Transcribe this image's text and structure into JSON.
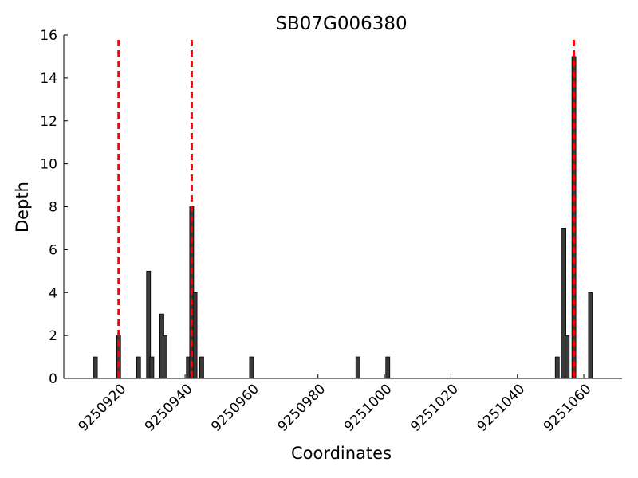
{
  "chart_data": {
    "type": "bar",
    "title": "SB07G006380",
    "x_label": "Coordinates",
    "y_label": "Depth",
    "x": [
      9250913,
      9250920,
      9250926,
      9250929,
      9250930,
      9250933,
      9250934,
      9250941,
      9250942,
      9250943,
      9250945,
      9250960,
      9250992,
      9251001,
      9251052,
      9251054,
      9251055,
      9251057,
      9251062
    ],
    "values": [
      1,
      2,
      1,
      5,
      1,
      3,
      2,
      1,
      8,
      4,
      1,
      1,
      1,
      1,
      1,
      7,
      2,
      15,
      4
    ],
    "color": "#3a3a3a",
    "reference_lines": {
      "x": [
        9250920,
        9250942,
        9251057
      ],
      "color": "#ff0000"
    },
    "xlim": [
      9250903.5,
      9251071.5
    ],
    "ylim": [
      0,
      16
    ],
    "xticks": [
      9250920,
      9250940,
      9250960,
      9250980,
      9251000,
      9251020,
      9251040,
      9251060
    ],
    "yticks": [
      0,
      2,
      4,
      6,
      8,
      10,
      12,
      14,
      16
    ]
  }
}
